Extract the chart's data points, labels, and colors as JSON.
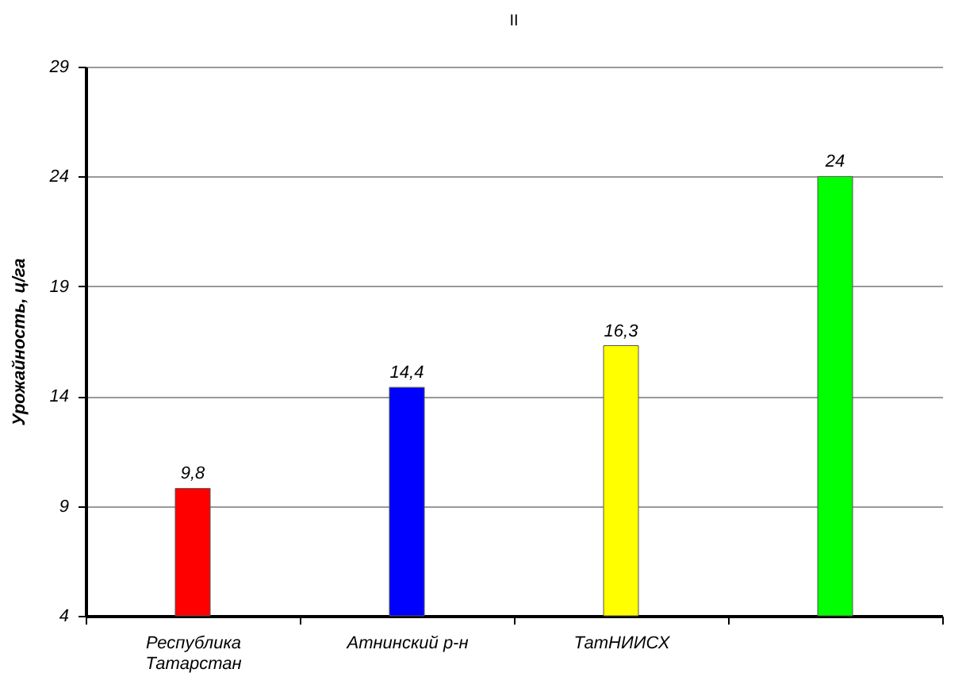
{
  "chart_data": {
    "type": "bar",
    "title": "II",
    "ylabel": "Урожайность, ц/га",
    "categories": [
      "Республика Татарстан",
      "Атнинский р-н",
      "ТатНИИСХ",
      null
    ],
    "values": [
      9.8,
      14.4,
      16.3,
      24
    ],
    "colors": [
      "#ff0000",
      "#0000ff",
      "#ffff00",
      "#00ff00"
    ],
    "value_labels": [
      "9,8",
      "14,4",
      "16,3",
      "24"
    ],
    "ylim": [
      4,
      29
    ],
    "yticks": [
      4,
      9,
      14,
      19,
      24,
      29
    ],
    "grid": "y"
  }
}
